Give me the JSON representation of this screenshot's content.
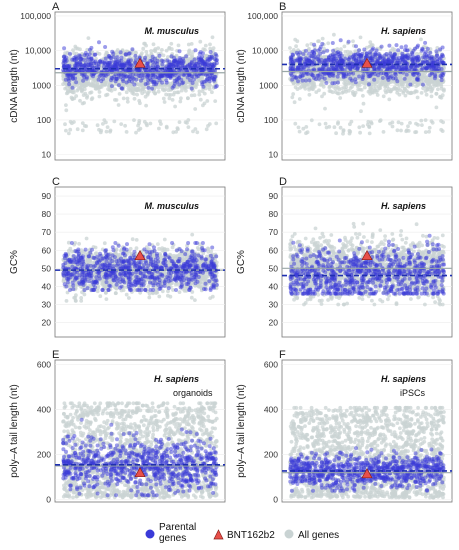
{
  "chart_data": [
    {
      "panel": "A",
      "type": "scatter",
      "annotation": "M. musculus",
      "annotation_sub": "",
      "ylabel": "cDNA length (nt)",
      "yscale": "log",
      "ylim": [
        7,
        130000
      ],
      "yticks": [
        10,
        100,
        1000,
        10000,
        100000
      ],
      "yticklabels": [
        "10",
        "100",
        "1000",
        "10,000",
        "100,000"
      ],
      "all_genes_median": 2300,
      "parental_median": 3000,
      "bnt162b2_value": 4300,
      "all_genes_range": [
        300,
        40000
      ],
      "all_genes_outliers_low": [
        40,
        100
      ],
      "parental_range": [
        800,
        20000
      ]
    },
    {
      "panel": "B",
      "type": "scatter",
      "annotation": "H. sapiens",
      "annotation_sub": "",
      "ylabel": "cDNA length (nt)",
      "yscale": "log",
      "ylim": [
        7,
        130000
      ],
      "yticks": [
        10,
        100,
        1000,
        10000,
        100000
      ],
      "yticklabels": [
        "10",
        "100",
        "1000",
        "10,000",
        "100,000"
      ],
      "all_genes_median": 2500,
      "parental_median": 4000,
      "bnt162b2_value": 4300,
      "all_genes_range": [
        300,
        40000
      ],
      "all_genes_outliers_low": [
        40,
        100
      ],
      "parental_range": [
        900,
        20000
      ]
    },
    {
      "panel": "C",
      "type": "scatter",
      "annotation": "M. musculus",
      "annotation_sub": "",
      "ylabel": "GC%",
      "yscale": "linear",
      "ylim": [
        12,
        95
      ],
      "yticks": [
        20,
        30,
        40,
        50,
        60,
        70,
        80,
        90
      ],
      "yticklabels": [
        "20",
        "30",
        "40",
        "50",
        "60",
        "70",
        "80",
        "90"
      ],
      "all_genes_median": 49,
      "parental_median": 49,
      "bnt162b2_value": 57,
      "all_genes_range": [
        38,
        66
      ],
      "parental_range": [
        38,
        64
      ]
    },
    {
      "panel": "D",
      "type": "scatter",
      "annotation": "H. sapiens",
      "annotation_sub": "",
      "ylabel": "GC%",
      "yscale": "linear",
      "ylim": [
        12,
        95
      ],
      "yticks": [
        20,
        30,
        40,
        50,
        60,
        70,
        80,
        90
      ],
      "yticklabels": [
        "20",
        "30",
        "40",
        "50",
        "60",
        "70",
        "80",
        "90"
      ],
      "all_genes_median": 50,
      "parental_median": 46,
      "bnt162b2_value": 57,
      "all_genes_range": [
        36,
        72
      ],
      "parental_range": [
        36,
        68
      ]
    },
    {
      "panel": "E",
      "type": "scatter",
      "annotation": "H. sapiens",
      "annotation_sub": "organoids",
      "ylabel": "poly–A tail length (nt)",
      "yscale": "linear",
      "ylim": [
        -10,
        620
      ],
      "yticks": [
        0,
        200,
        400,
        600
      ],
      "yticklabels": [
        "0",
        "200",
        "400",
        "600"
      ],
      "all_genes_median": 150,
      "parental_median": 155,
      "bnt162b2_value": 120,
      "all_genes_range": [
        10,
        420
      ],
      "parental_range": [
        20,
        380
      ]
    },
    {
      "panel": "F",
      "type": "scatter",
      "annotation": "H. sapiens",
      "annotation_sub": "iPSCs",
      "ylabel": "poly–A tail length (nt)",
      "yscale": "linear",
      "ylim": [
        -10,
        620
      ],
      "yticks": [
        0,
        200,
        400,
        600
      ],
      "yticklabels": [
        "0",
        "200",
        "400",
        "600"
      ],
      "all_genes_median": 120,
      "parental_median": 128,
      "bnt162b2_value": 115,
      "all_genes_range": [
        10,
        400
      ],
      "parental_range": [
        40,
        260
      ]
    }
  ],
  "legend": {
    "parental_label_line1": "Parental",
    "parental_label_line2": "genes",
    "bnt_label": "BNT162b2",
    "all_label": "All genes"
  },
  "colors": {
    "parental": "#3a3ad8",
    "all_genes": "#c9d3d3",
    "bnt162b2": "#e8504a",
    "parental_median_line": "#1f2fb0",
    "all_median_line": "#9aa7a7",
    "frame": "#777777"
  }
}
